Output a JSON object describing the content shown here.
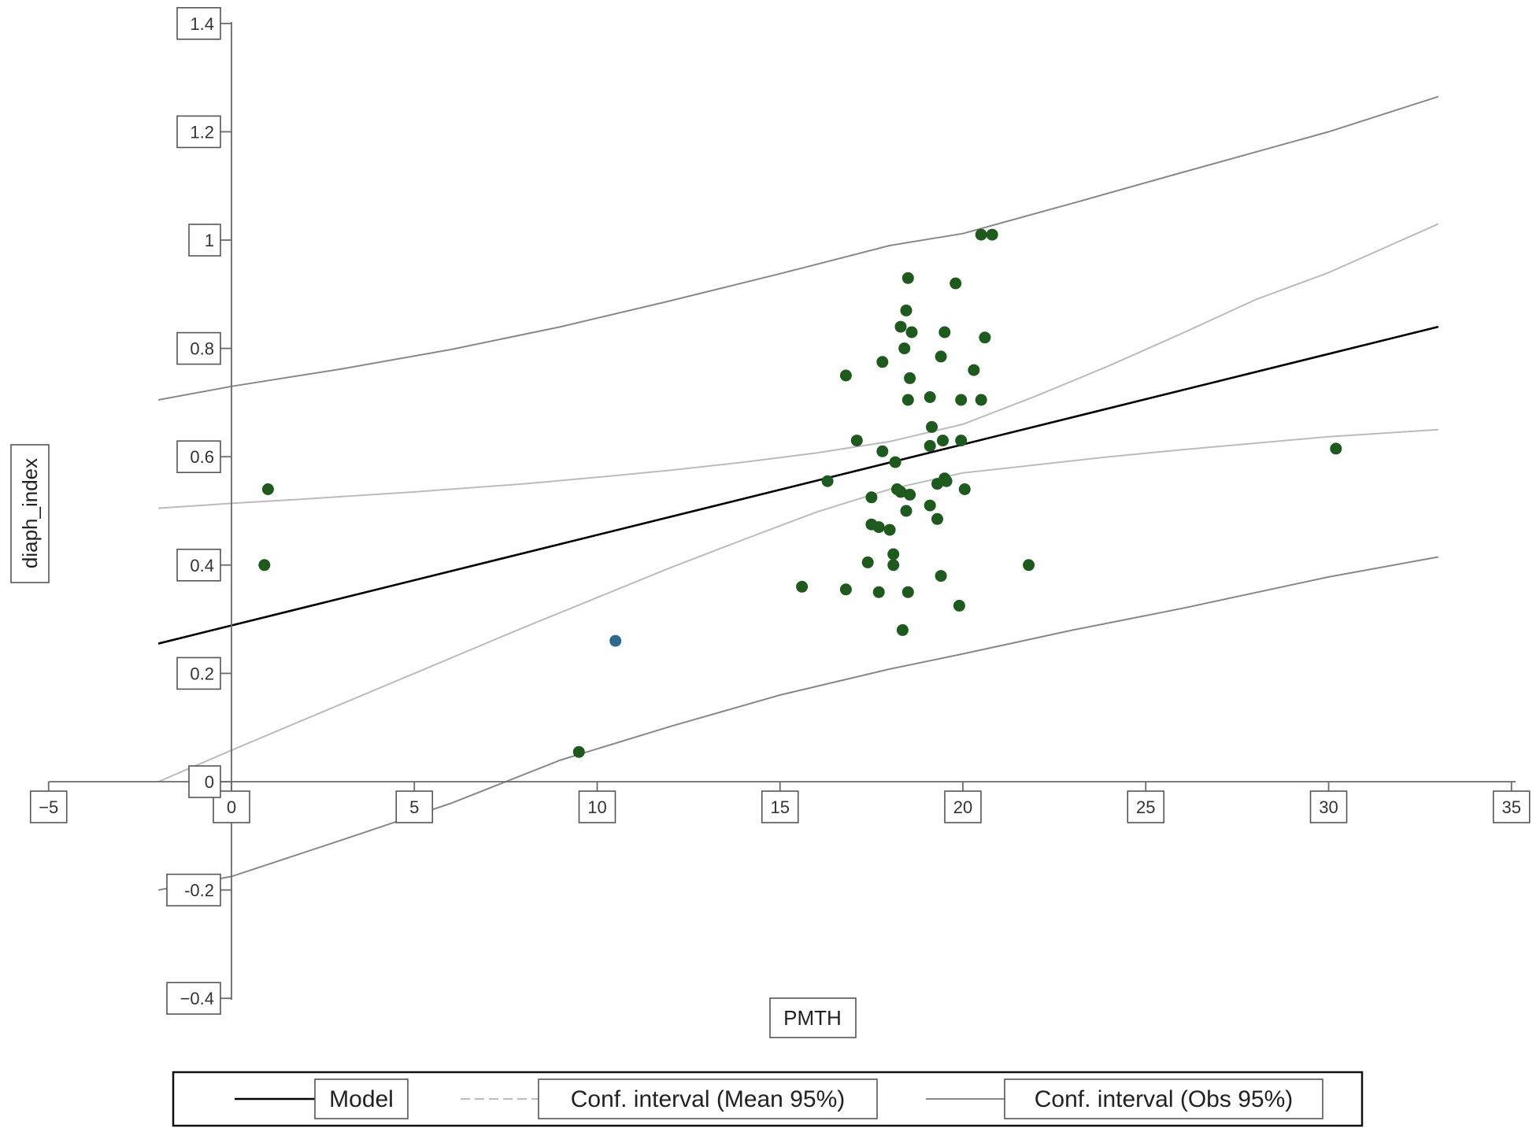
{
  "chart_data": {
    "type": "scatter",
    "title": "",
    "xlabel": "PMTH",
    "ylabel": "diaph_index",
    "xlim": [
      -5,
      35
    ],
    "ylim": [
      -0.4,
      1.4
    ],
    "xticks": [
      "−5",
      "0",
      "5",
      "10",
      "15",
      "20",
      "25",
      "30",
      "35"
    ],
    "xtick_values": [
      -5,
      0,
      5,
      10,
      15,
      20,
      25,
      30,
      35
    ],
    "yticks": [
      "1.4",
      "1.2",
      "1",
      "0.8",
      "0.6",
      "0.4",
      "0.2",
      "0",
      "-0.2",
      "−0.4"
    ],
    "ytick_values": [
      1.4,
      1.2,
      1.0,
      0.8,
      0.6,
      0.4,
      0.2,
      0.0,
      -0.2,
      -0.4
    ],
    "grid": false,
    "legend_placement": "bottom",
    "legend": [
      {
        "label": "Model",
        "style": "solid",
        "color": "#000000"
      },
      {
        "label": "Conf. interval (Mean 95%)",
        "style": "dashed",
        "color": "#bbbbbb"
      },
      {
        "label": "Conf. interval (Obs 95%)",
        "style": "solid",
        "color": "#888888"
      }
    ],
    "colors": {
      "points": "#1e5a1e",
      "highlight": "#2e6a8e",
      "model": "#000000",
      "mean_ci": "#bbbbbb",
      "obs_ci": "#888888"
    },
    "points": [
      [
        1,
        0.54
      ],
      [
        0.9,
        0.4
      ],
      [
        9.5,
        0.055
      ],
      [
        15.6,
        0.36
      ],
      [
        16.3,
        0.555
      ],
      [
        16.8,
        0.355
      ],
      [
        16.8,
        0.75
      ],
      [
        17.1,
        0.63
      ],
      [
        17.4,
        0.405
      ],
      [
        17.5,
        0.475
      ],
      [
        17.5,
        0.525
      ],
      [
        17.7,
        0.47
      ],
      [
        17.7,
        0.35
      ],
      [
        17.8,
        0.61
      ],
      [
        17.8,
        0.775
      ],
      [
        18.0,
        0.465
      ],
      [
        18.1,
        0.42
      ],
      [
        18.1,
        0.4
      ],
      [
        18.15,
        0.59
      ],
      [
        18.2,
        0.54
      ],
      [
        18.3,
        0.84
      ],
      [
        18.3,
        0.535
      ],
      [
        18.35,
        0.28
      ],
      [
        18.4,
        0.8
      ],
      [
        18.45,
        0.87
      ],
      [
        18.45,
        0.5
      ],
      [
        18.5,
        0.93
      ],
      [
        18.5,
        0.705
      ],
      [
        18.5,
        0.35
      ],
      [
        18.55,
        0.745
      ],
      [
        18.55,
        0.53
      ],
      [
        18.6,
        0.83
      ],
      [
        19.1,
        0.71
      ],
      [
        19.1,
        0.62
      ],
      [
        19.1,
        0.51
      ],
      [
        19.15,
        0.655
      ],
      [
        19.3,
        0.55
      ],
      [
        19.3,
        0.485
      ],
      [
        19.4,
        0.38
      ],
      [
        19.4,
        0.785
      ],
      [
        19.45,
        0.63
      ],
      [
        19.5,
        0.56
      ],
      [
        19.5,
        0.83
      ],
      [
        19.55,
        0.555
      ],
      [
        19.8,
        0.92
      ],
      [
        19.9,
        0.325
      ],
      [
        19.95,
        0.705
      ],
      [
        19.95,
        0.63
      ],
      [
        20.05,
        0.54
      ],
      [
        20.3,
        0.76
      ],
      [
        20.5,
        0.705
      ],
      [
        20.5,
        1.01
      ],
      [
        20.6,
        0.82
      ],
      [
        20.8,
        1.01
      ],
      [
        21.8,
        0.4
      ],
      [
        30.2,
        0.615
      ]
    ],
    "highlight_points": [
      [
        10.5,
        0.26
      ]
    ],
    "model_line": {
      "x": [
        -2,
        33
      ],
      "y": [
        0.255,
        0.84
      ]
    },
    "mean_ci_upper": {
      "x": [
        -2,
        0,
        2,
        5,
        8,
        10,
        12,
        14,
        16,
        18,
        20,
        22,
        24,
        26,
        28,
        30,
        33
      ],
      "y": [
        0.505,
        0.514,
        0.522,
        0.535,
        0.55,
        0.562,
        0.575,
        0.59,
        0.607,
        0.628,
        0.66,
        0.712,
        0.768,
        0.828,
        0.89,
        0.94,
        1.03
      ]
    },
    "mean_ci_lower": {
      "x": [
        -2,
        0,
        2,
        5,
        8,
        10,
        12,
        14,
        16,
        18,
        20,
        22,
        24,
        26,
        28,
        30,
        33
      ],
      "y": [
        0.0,
        0.058,
        0.115,
        0.2,
        0.285,
        0.34,
        0.395,
        0.447,
        0.498,
        0.54,
        0.57,
        0.585,
        0.6,
        0.613,
        0.625,
        0.637,
        0.65
      ]
    },
    "obs_ci_upper": {
      "x": [
        -2,
        0,
        3,
        6,
        9,
        12,
        15,
        18,
        20,
        23,
        26,
        30,
        33
      ],
      "y": [
        0.705,
        0.73,
        0.762,
        0.798,
        0.84,
        0.888,
        0.938,
        0.99,
        1.012,
        1.068,
        1.125,
        1.2,
        1.265
      ]
    },
    "obs_ci_lower": {
      "x": [
        -2,
        0,
        3,
        6,
        9,
        12,
        15,
        18,
        20,
        23,
        26,
        30,
        33
      ],
      "y": [
        -0.2,
        -0.175,
        -0.108,
        -0.04,
        0.04,
        0.102,
        0.16,
        0.208,
        0.236,
        0.28,
        0.32,
        0.378,
        0.415
      ]
    }
  }
}
